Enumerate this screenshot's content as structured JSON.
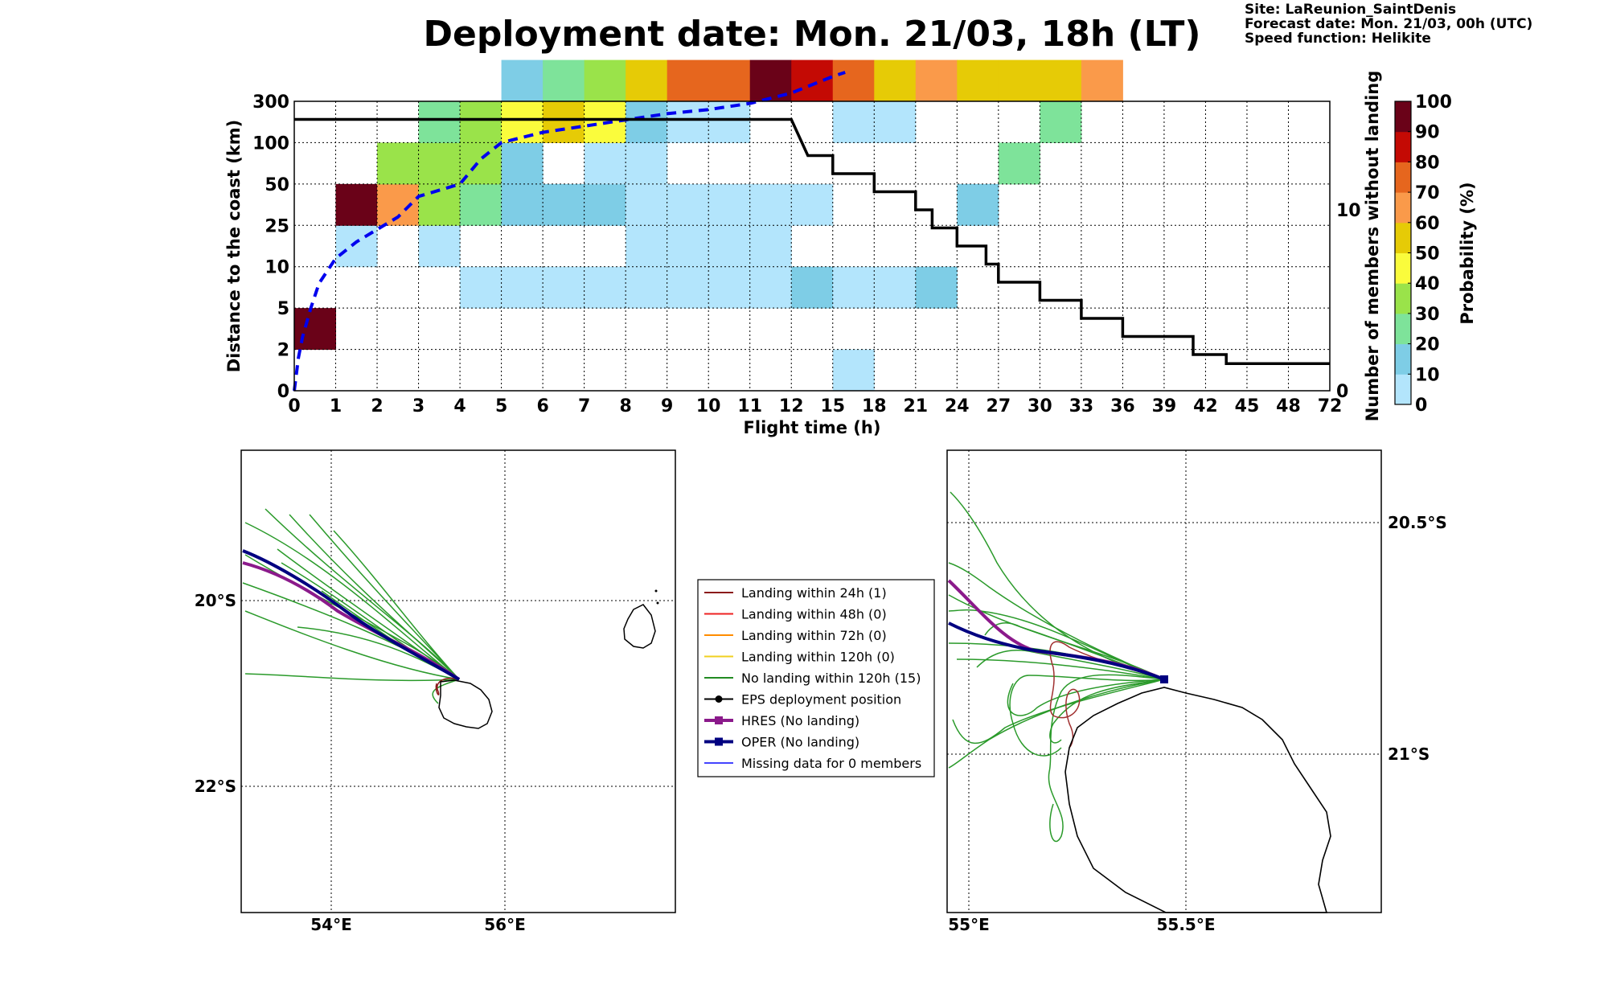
{
  "title": "Deployment date: Mon. 21/03, 18h (LT)",
  "meta": {
    "site": "Site: LaReunion_SaintDenis",
    "forecast": "Forecast date: Mon. 21/03, 00h (UTC)",
    "speed": "Speed function: Helikite"
  },
  "chart_data": [
    {
      "type": "heatmap",
      "xlabel": "Flight time (h)",
      "ylabel": "Distance to the coast (km)",
      "ylabel_right": "Number of members without landing",
      "x_tick_labels": [
        "0",
        "1",
        "2",
        "3",
        "4",
        "5",
        "6",
        "7",
        "8",
        "9",
        "10",
        "11",
        "12",
        "15",
        "18",
        "21",
        "24",
        "27",
        "30",
        "33",
        "36",
        "39",
        "42",
        "45",
        "48",
        "72"
      ],
      "y_tick_labels": [
        "0",
        "2",
        "5",
        "10",
        "25",
        "50",
        "100",
        "300"
      ],
      "right_ticks": [
        {
          "label": "0",
          "value": 0
        },
        {
          "label": "10",
          "value": 10
        }
      ],
      "right_ylim": [
        0,
        16
      ],
      "colorbar": {
        "label": "Probability (%)",
        "tick_labels": [
          "0",
          "10",
          "20",
          "30",
          "40",
          "50",
          "60",
          "70",
          "80",
          "90",
          "100"
        ],
        "colors": [
          "#b3e5fc",
          "#7ecde6",
          "#7ee39a",
          "#9ae34a",
          "#fafc3c",
          "#e6cb06",
          "#fa9a4a",
          "#e6661e",
          "#c40a04",
          "#6a0218"
        ]
      },
      "cells": [
        {
          "x": 0,
          "y": 1,
          "bin": 9
        },
        {
          "x": 1,
          "y": 3,
          "bin": 0
        },
        {
          "x": 1,
          "y": 4,
          "bin": 9
        },
        {
          "x": 2,
          "y": 4,
          "bin": 6
        },
        {
          "x": 2,
          "y": 5,
          "bin": 3
        },
        {
          "x": 3,
          "y": 3,
          "bin": 0
        },
        {
          "x": 3,
          "y": 4,
          "bin": 3
        },
        {
          "x": 3,
          "y": 5,
          "bin": 3
        },
        {
          "x": 3,
          "y": 6,
          "bin": 2
        },
        {
          "x": 4,
          "y": 2,
          "bin": 0
        },
        {
          "x": 4,
          "y": 4,
          "bin": 2
        },
        {
          "x": 4,
          "y": 5,
          "bin": 3
        },
        {
          "x": 4,
          "y": 6,
          "bin": 3
        },
        {
          "x": 5,
          "y": 2,
          "bin": 0
        },
        {
          "x": 5,
          "y": 4,
          "bin": 1
        },
        {
          "x": 5,
          "y": 5,
          "bin": 1
        },
        {
          "x": 5,
          "y": 6,
          "bin": 4
        },
        {
          "x": 5,
          "y": 7,
          "bin": 1
        },
        {
          "x": 6,
          "y": 2,
          "bin": 0
        },
        {
          "x": 6,
          "y": 4,
          "bin": 1
        },
        {
          "x": 6,
          "y": 6,
          "bin": 5
        },
        {
          "x": 6,
          "y": 7,
          "bin": 2
        },
        {
          "x": 7,
          "y": 2,
          "bin": 0
        },
        {
          "x": 7,
          "y": 4,
          "bin": 1
        },
        {
          "x": 7,
          "y": 5,
          "bin": 0
        },
        {
          "x": 7,
          "y": 6,
          "bin": 4
        },
        {
          "x": 7,
          "y": 7,
          "bin": 3
        },
        {
          "x": 8,
          "y": 2,
          "bin": 0
        },
        {
          "x": 8,
          "y": 3,
          "bin": 0
        },
        {
          "x": 8,
          "y": 4,
          "bin": 0
        },
        {
          "x": 8,
          "y": 5,
          "bin": 0
        },
        {
          "x": 8,
          "y": 6,
          "bin": 1
        },
        {
          "x": 8,
          "y": 7,
          "bin": 5
        },
        {
          "x": 9,
          "y": 2,
          "bin": 0
        },
        {
          "x": 9,
          "y": 3,
          "bin": 0
        },
        {
          "x": 9,
          "y": 4,
          "bin": 0
        },
        {
          "x": 9,
          "y": 6,
          "bin": 0
        },
        {
          "x": 9,
          "y": 7,
          "bin": 7
        },
        {
          "x": 10,
          "y": 2,
          "bin": 0
        },
        {
          "x": 10,
          "y": 3,
          "bin": 0
        },
        {
          "x": 10,
          "y": 4,
          "bin": 0
        },
        {
          "x": 10,
          "y": 6,
          "bin": 0
        },
        {
          "x": 10,
          "y": 7,
          "bin": 7
        },
        {
          "x": 11,
          "y": 2,
          "bin": 0
        },
        {
          "x": 11,
          "y": 3,
          "bin": 0
        },
        {
          "x": 11,
          "y": 4,
          "bin": 0
        },
        {
          "x": 11,
          "y": 7,
          "bin": 9
        },
        {
          "x": 12,
          "y": 2,
          "bin": 1
        },
        {
          "x": 12,
          "y": 4,
          "bin": 0
        },
        {
          "x": 12,
          "y": 7,
          "bin": 8
        },
        {
          "x": 13,
          "y": 0,
          "bin": 0
        },
        {
          "x": 13,
          "y": 2,
          "bin": 0
        },
        {
          "x": 13,
          "y": 6,
          "bin": 0
        },
        {
          "x": 13,
          "y": 7,
          "bin": 7
        },
        {
          "x": 14,
          "y": 2,
          "bin": 0
        },
        {
          "x": 14,
          "y": 6,
          "bin": 0
        },
        {
          "x": 14,
          "y": 7,
          "bin": 5
        },
        {
          "x": 15,
          "y": 2,
          "bin": 1
        },
        {
          "x": 15,
          "y": 7,
          "bin": 6
        },
        {
          "x": 16,
          "y": 4,
          "bin": 1
        },
        {
          "x": 16,
          "y": 7,
          "bin": 5
        },
        {
          "x": 17,
          "y": 5,
          "bin": 2
        },
        {
          "x": 17,
          "y": 7,
          "bin": 5
        },
        {
          "x": 18,
          "y": 6,
          "bin": 2
        },
        {
          "x": 18,
          "y": 7,
          "bin": 5
        },
        {
          "x": 19,
          "y": 7,
          "bin": 6
        }
      ],
      "members_without_landing": [
        [
          0,
          15
        ],
        [
          12,
          15
        ],
        [
          12.2,
          14
        ],
        [
          12.4,
          13
        ],
        [
          13,
          13
        ],
        [
          13,
          12
        ],
        [
          14,
          12
        ],
        [
          14,
          11
        ],
        [
          15,
          11
        ],
        [
          15,
          10
        ],
        [
          15.4,
          10
        ],
        [
          15.4,
          9
        ],
        [
          16,
          9
        ],
        [
          16,
          8
        ],
        [
          16.7,
          8
        ],
        [
          16.7,
          7
        ],
        [
          17,
          7
        ],
        [
          17,
          6
        ],
        [
          18,
          6
        ],
        [
          18,
          5
        ],
        [
          19,
          5
        ],
        [
          19,
          4
        ],
        [
          20,
          4
        ],
        [
          20,
          3
        ],
        [
          21.7,
          3
        ],
        [
          21.7,
          2
        ],
        [
          22.5,
          2
        ],
        [
          22.5,
          1.5
        ],
        [
          25,
          1.5
        ]
      ],
      "mean_distance_dashed": [
        [
          0,
          0
        ],
        [
          0.1,
          0.8
        ],
        [
          0.2,
          1.3
        ],
        [
          0.4,
          2.0
        ],
        [
          0.6,
          2.6
        ],
        [
          1,
          3.2
        ],
        [
          1.5,
          3.6
        ],
        [
          2,
          3.9
        ],
        [
          2.5,
          4.2
        ],
        [
          3,
          4.7
        ],
        [
          4,
          5.0
        ],
        [
          4.5,
          5.6
        ],
        [
          5,
          6.0
        ],
        [
          6,
          6.25
        ],
        [
          7,
          6.4
        ],
        [
          8,
          6.55
        ],
        [
          9,
          6.7
        ],
        [
          10,
          6.8
        ],
        [
          11,
          6.95
        ],
        [
          12,
          7.2
        ],
        [
          13,
          7.6
        ],
        [
          13.3,
          7.7
        ]
      ]
    },
    {
      "type": "map",
      "x_tick_labels": [
        "54°E",
        "56°E"
      ],
      "y_tick_labels": [
        "20°S",
        "22°S"
      ],
      "lon_range": [
        53,
        58
      ],
      "lat_range": [
        -23.5,
        -18.5
      ]
    },
    {
      "type": "map",
      "x_tick_labels": [
        "55°E",
        "55.5°E"
      ],
      "y_tick_labels": [
        "20.5°S",
        "21°S"
      ],
      "lon_range": [
        54.95,
        55.95
      ],
      "lat_range": [
        -21.35,
        -20.35
      ]
    }
  ],
  "legend": [
    {
      "label": "Landing within 24h (1)",
      "color": "#8b1a1a",
      "marker": "none"
    },
    {
      "label": "Landing within 48h (0)",
      "color": "#ee2222",
      "marker": "none"
    },
    {
      "label": "Landing within 72h (0)",
      "color": "#ff8c00",
      "marker": "none"
    },
    {
      "label": "Landing within 120h (0)",
      "color": "#f0d020",
      "marker": "none"
    },
    {
      "label": "No landing within 120h (15)",
      "color": "#228b22",
      "marker": "none"
    },
    {
      "label": "EPS deployment position",
      "color": "#000000",
      "marker": "dot"
    },
    {
      "label": "HRES (No landing)",
      "color": "#8b1a8b",
      "marker": "square"
    },
    {
      "label": "OPER (No landing)",
      "color": "#000080",
      "marker": "square"
    },
    {
      "label": "Missing data for 0 members",
      "color": "#4444ff",
      "marker": "none"
    }
  ]
}
